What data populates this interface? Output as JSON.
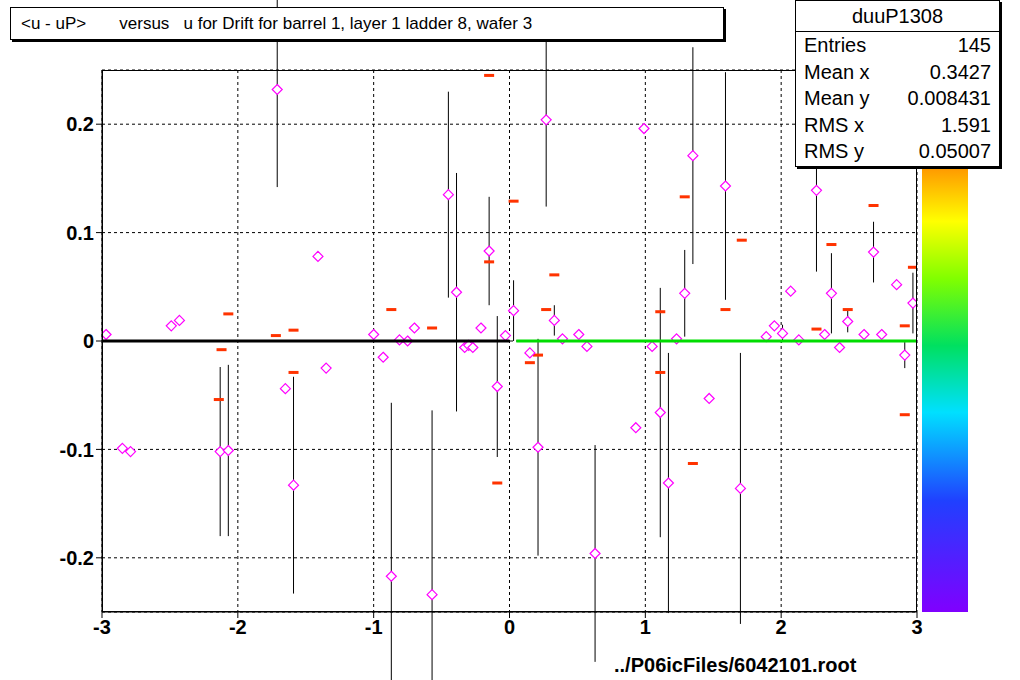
{
  "chart_data": {
    "type": "scatter",
    "title": "<u - uP>       versus   u for Drift for barrel 1, layer 1 ladder 8, wafer 3",
    "annotation": "../P06icFiles/6042101.root",
    "stats": {
      "title": "duuP1308",
      "rows": [
        {
          "label": "Entries",
          "value": 145
        },
        {
          "label": "Mean x",
          "value": 0.3427
        },
        {
          "label": "Mean y",
          "value": 0.008431
        },
        {
          "label": "RMS x",
          "value": 1.591
        },
        {
          "label": "RMS y",
          "value": 0.05007
        }
      ]
    },
    "xlim": [
      -3,
      3
    ],
    "xticks": [
      -3,
      -2,
      -1,
      0,
      1,
      2,
      3
    ],
    "ylim": [
      -0.25,
      0.25
    ],
    "yticks": [
      -0.2,
      -0.1,
      0,
      0.1,
      0.2
    ],
    "grid": true,
    "series": [
      {
        "type": "scatter",
        "marker": "dash",
        "color": "#ff3300",
        "x": [
          -2.14,
          -2.07,
          -2.12,
          -1.59,
          -1.59,
          -1.72,
          -0.87,
          -0.57,
          -0.15,
          -0.15,
          -0.09,
          0.03,
          0.33,
          0.21,
          0.15,
          0.27,
          1.11,
          1.11,
          1.29,
          1.35,
          1.59,
          1.71,
          2.37,
          2.26,
          2.49,
          2.68,
          2.97,
          2.91,
          2.91
        ],
        "values": [
          -0.054,
          0.025,
          -0.008,
          -0.029,
          0.01,
          0.005,
          0.029,
          0.012,
          0.245,
          0.073,
          -0.131,
          0.129,
          0.061,
          -0.013,
          -0.02,
          0.029,
          0.027,
          -0.029,
          0.133,
          -0.113,
          0.029,
          0.093,
          0.089,
          0.011,
          0.029,
          0.125,
          0.068,
          -0.068,
          0.014
        ]
      },
      {
        "type": "scatter",
        "marker": "diamond",
        "color": "#ff00ff",
        "x": [
          -2.97,
          -2.85,
          -2.79,
          -2.49,
          -2.43,
          -2.13,
          -2.07,
          -1.71,
          -1.65,
          -1.59,
          -1.41,
          -1.35,
          -1.0,
          -0.93,
          -0.87,
          -0.81,
          -0.75,
          -0.7,
          -0.57,
          -0.45,
          -0.39,
          -0.33,
          -0.3,
          -0.27,
          -0.21,
          -0.15,
          -0.09,
          -0.03,
          0.03,
          0.15,
          0.21,
          0.27,
          0.33,
          0.39,
          0.51,
          0.57,
          0.63,
          0.93,
          0.99,
          1.05,
          1.11,
          1.17,
          1.23,
          1.29,
          1.35,
          1.47,
          1.59,
          1.7,
          1.89,
          1.95,
          2.01,
          2.07,
          2.13,
          2.26,
          2.32,
          2.37,
          2.43,
          2.49,
          2.61,
          2.68,
          2.74,
          2.85,
          2.91,
          2.97
        ],
        "values": [
          0.006,
          -0.099,
          -0.102,
          0.014,
          0.019,
          -0.102,
          -0.101,
          0.232,
          -0.044,
          -0.133,
          0.078,
          -0.025,
          0.006,
          -0.015,
          -0.217,
          0.001,
          0,
          0.012,
          -0.234,
          0.135,
          0.045,
          -0.006,
          -0.004,
          -0.006,
          0.012,
          0.083,
          -0.042,
          0.005,
          0.028,
          -0.011,
          -0.098,
          0.204,
          0.019,
          0.002,
          0.006,
          -0.005,
          -0.196,
          -0.08,
          0.196,
          -0.005,
          -0.066,
          -0.131,
          0.002,
          0.044,
          0.171,
          -0.053,
          0.143,
          -0.136,
          0.004,
          0.014,
          0.007,
          0.046,
          0.001,
          0.139,
          0.006,
          0.044,
          -0.006,
          0.018,
          0.006,
          0.082,
          0.006,
          0.052,
          -0.013,
          0.035
        ],
        "error": [
          null,
          null,
          null,
          null,
          null,
          0.078,
          0.079,
          0.09,
          null,
          0.1,
          null,
          null,
          null,
          null,
          0.16,
          null,
          null,
          null,
          0.17,
          0.095,
          0.11,
          null,
          null,
          null,
          null,
          0.05,
          0.065,
          null,
          0.028,
          null,
          0.1,
          0.08,
          0.014,
          null,
          null,
          null,
          0.1,
          null,
          null,
          null,
          0.115,
          0.12,
          null,
          0.04,
          0.1,
          null,
          0.105,
          0.125,
          null,
          null,
          0.008,
          null,
          null,
          0.075,
          null,
          0.037,
          null,
          0.01,
          null,
          0.028,
          null,
          null,
          0.012,
          0.028
        ]
      },
      {
        "type": "line",
        "color": "#000000",
        "x": [
          -3,
          0
        ],
        "values": [
          0,
          0
        ]
      },
      {
        "type": "line",
        "color": "#00dd00",
        "x": [
          0.05,
          3
        ],
        "values": [
          0,
          0
        ]
      }
    ]
  }
}
